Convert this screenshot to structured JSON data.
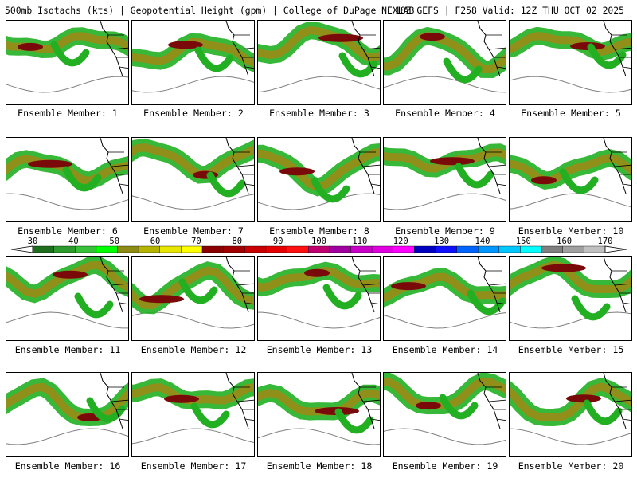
{
  "header": {
    "left": "500mb Isotachs (kts) | Geopotential Height (gpm) | College of DuPage NEXLAB",
    "right": "18Z GEFS | F258 Valid: 12Z THU OCT 02 2025"
  },
  "panels": [
    {
      "label": "Ensemble Member: 1"
    },
    {
      "label": "Ensemble Member: 2"
    },
    {
      "label": "Ensemble Member: 3"
    },
    {
      "label": "Ensemble Member: 4"
    },
    {
      "label": "Ensemble Member: 5"
    },
    {
      "label": "Ensemble Member: 6"
    },
    {
      "label": "Ensemble Member: 7"
    },
    {
      "label": "Ensemble Member: 8"
    },
    {
      "label": "Ensemble Member: 9"
    },
    {
      "label": "Ensemble Member: 10"
    },
    {
      "label": "Ensemble Member: 11"
    },
    {
      "label": "Ensemble Member: 12"
    },
    {
      "label": "Ensemble Member: 13"
    },
    {
      "label": "Ensemble Member: 14"
    },
    {
      "label": "Ensemble Member: 15"
    },
    {
      "label": "Ensemble Member: 16"
    },
    {
      "label": "Ensemble Member: 17"
    },
    {
      "label": "Ensemble Member: 18"
    },
    {
      "label": "Ensemble Member: 19"
    },
    {
      "label": "Ensemble Member: 20"
    }
  ],
  "colorbar": {
    "ticks": [
      "30",
      "40",
      "50",
      "60",
      "70",
      "80",
      "90",
      "100",
      "110",
      "120",
      "130",
      "140",
      "150",
      "160",
      "170"
    ],
    "colors": [
      "#1e6e1e",
      "#2c9a2c",
      "#38c038",
      "#00ff00",
      "#8c8c14",
      "#b4b400",
      "#e6e600",
      "#ffff00",
      "#8b0000",
      "#a00000",
      "#c80000",
      "#e60000",
      "#ff1010",
      "#c00070",
      "#a000a0",
      "#c800c8",
      "#e000e0",
      "#ff00ff",
      "#0000c0",
      "#1010ff",
      "#0064ff",
      "#0096ff",
      "#00c8ff",
      "#00ffff",
      "#808080",
      "#a0a0a0",
      "#c0c0c0"
    ]
  },
  "colors": {
    "jet_outer": "#22b022",
    "jet_mid": "#8f8f1a",
    "jet_inner": "#7a0a0a",
    "coast": "#000000",
    "height_contour": "#808080"
  }
}
